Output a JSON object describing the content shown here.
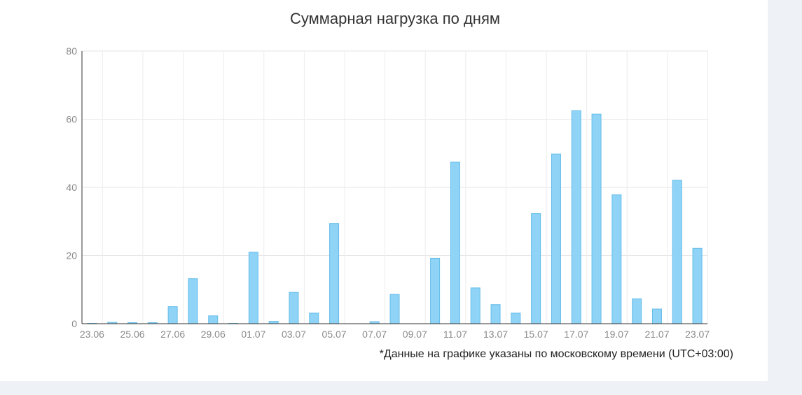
{
  "chart_data": {
    "type": "bar",
    "title": "Суммарная нагрузка по дням",
    "xlabel": "",
    "ylabel": "",
    "ylim": [
      0,
      80
    ],
    "yticks": [
      0,
      20,
      40,
      60,
      80
    ],
    "grid": true,
    "categories": [
      "23.06",
      "24.06",
      "25.06",
      "26.06",
      "27.06",
      "28.06",
      "29.06",
      "30.06",
      "01.07",
      "02.07",
      "03.07",
      "04.07",
      "05.07",
      "06.07",
      "07.07",
      "08.07",
      "09.07",
      "10.07",
      "11.07",
      "12.07",
      "13.07",
      "14.07",
      "15.07",
      "16.07",
      "17.07",
      "18.07",
      "19.07",
      "20.07",
      "21.07",
      "22.07",
      "23.07"
    ],
    "tick_labels": [
      "23.06",
      "25.06",
      "27.06",
      "29.06",
      "01.07",
      "03.07",
      "05.07",
      "07.07",
      "09.07",
      "11.07",
      "13.07",
      "15.07",
      "17.07",
      "19.07",
      "21.07",
      "23.07"
    ],
    "values": [
      0.1,
      0.4,
      0.3,
      0.3,
      5,
      13.2,
      2.3,
      0.1,
      21,
      0.7,
      9.2,
      3.1,
      29.4,
      0,
      0.6,
      8.6,
      0,
      19.2,
      47.4,
      10.5,
      5.6,
      3.1,
      32.3,
      49.8,
      62.5,
      61.5,
      37.8,
      7.3,
      4.3,
      42.1,
      22.1
    ],
    "bar_color": "#8fd3f7",
    "bar_border_color": "#64bde9"
  },
  "footnote": "*Данные на графике указаны по московскому времени (UTC+03:00)"
}
